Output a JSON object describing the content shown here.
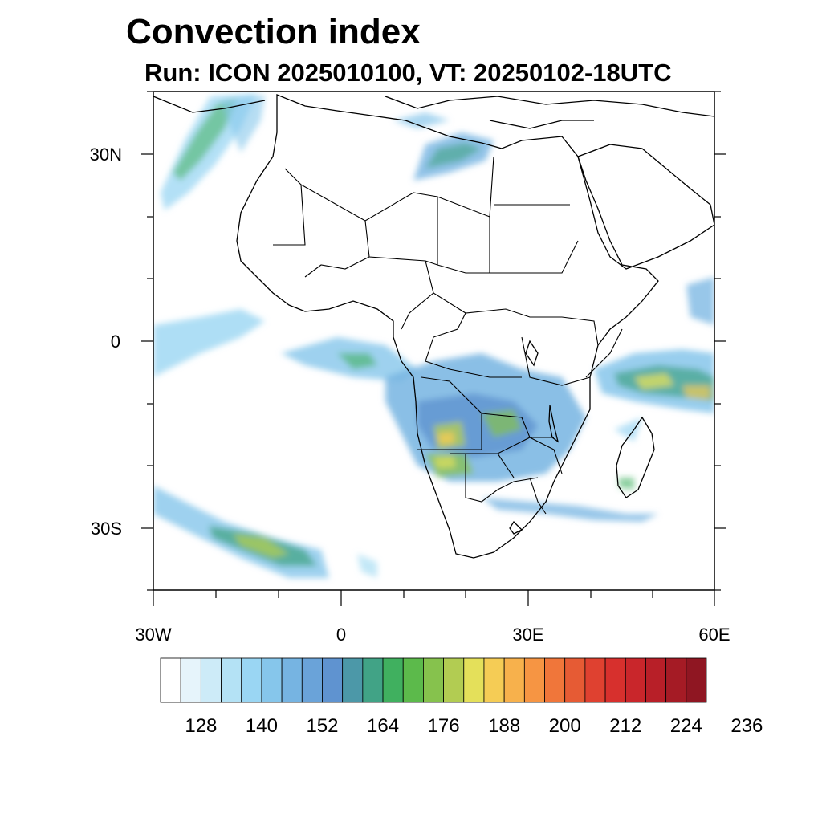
{
  "title": "Convection index",
  "subtitle": "Run: ICON 2025010100,  VT: 20250102-18UTC",
  "map": {
    "lon_range": [
      -30,
      60
    ],
    "lat_range": [
      -40,
      40
    ],
    "lat_labels": [
      {
        "lat": 30,
        "text": "30N"
      },
      {
        "lat": 0,
        "text": "0"
      },
      {
        "lat": -30,
        "text": "30S"
      }
    ],
    "lon_labels": [
      {
        "lon": -30,
        "text": "30W"
      },
      {
        "lon": 0,
        "text": "0"
      },
      {
        "lon": 30,
        "text": "30E"
      },
      {
        "lon": 60,
        "text": "60E"
      }
    ]
  },
  "colorbar": {
    "colors": [
      "#ffffff",
      "#e6f4fb",
      "#cdebf8",
      "#b4e2f5",
      "#9ad6f3",
      "#86c6eb",
      "#76b4e2",
      "#6aa3d9",
      "#5f93d0",
      "#4c98a8",
      "#41a386",
      "#40b05f",
      "#5cba4b",
      "#86c24d",
      "#b2cc52",
      "#e4e05a",
      "#f5cc55",
      "#f7b14c",
      "#f69543",
      "#f0763a",
      "#e65b34",
      "#df4130",
      "#d7302d",
      "#c9262b",
      "#b81f28",
      "#a51b25",
      "#8f1622"
    ],
    "labels": [
      "128",
      "140",
      "152",
      "164",
      "176",
      "188",
      "200",
      "212",
      "224",
      "236"
    ]
  },
  "convection_areas": [
    {
      "name": "nw-atlantic-band",
      "level": "low"
    },
    {
      "name": "algeria-band",
      "level": "low"
    },
    {
      "name": "equatorial-atlantic",
      "level": "low"
    },
    {
      "name": "congo-zambia",
      "level": "moderate"
    },
    {
      "name": "angola-namibia",
      "level": "moderate"
    },
    {
      "name": "indian-ocean-band",
      "level": "moderate"
    },
    {
      "name": "south-atlantic-front",
      "level": "moderate"
    }
  ]
}
